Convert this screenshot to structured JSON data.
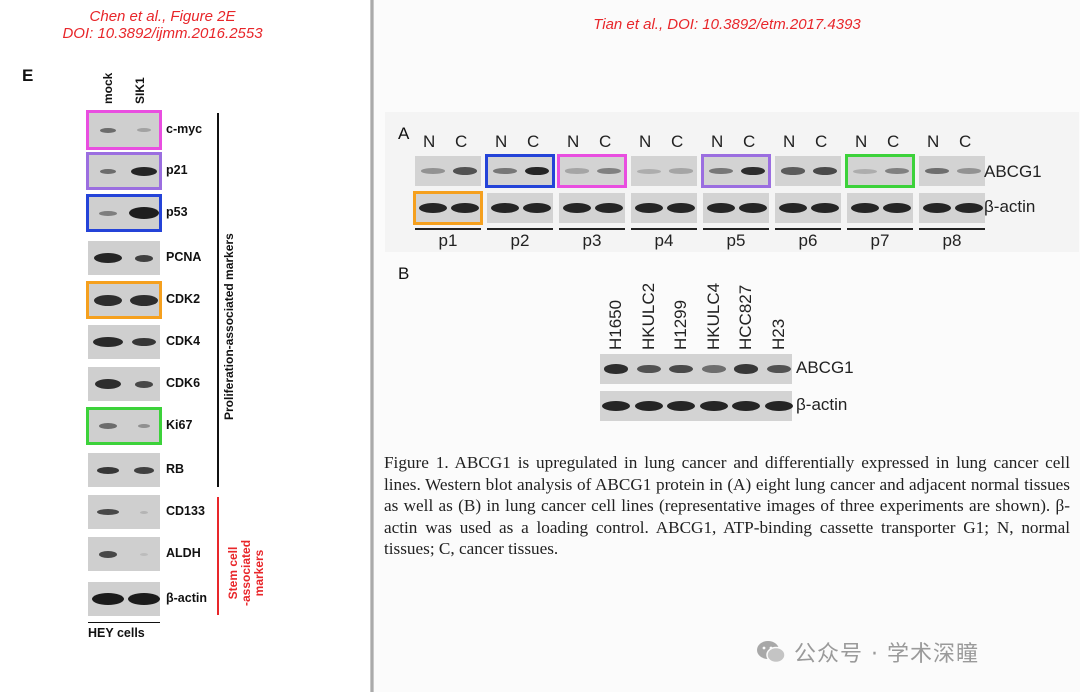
{
  "left": {
    "source_line1": "Chen et al., Figure 2E",
    "source_line2": "DOI: 10.3892/ijmm.2016.2553",
    "panel_letter": "E",
    "col_mock": "mock",
    "col_sik1": "SIK1",
    "rows": [
      "c-myc",
      "p21",
      "p53",
      "PCNA",
      "CDK2",
      "CDK4",
      "CDK6",
      "Ki67",
      "RB",
      "CD133",
      "ALDH",
      "β-actin"
    ],
    "group_proliferation": "Proliferation-associated markers",
    "group_stem_line1": "Stem cell",
    "group_stem_line2": "-associated",
    "group_stem_line3": "markers",
    "footer": "HEY cells"
  },
  "right": {
    "source": "Tian et al., DOI: 10.3892/etm.2017.4393",
    "panel_a": "A",
    "panel_b": "B",
    "n": "N",
    "c": "C",
    "pairs": [
      "p1",
      "p2",
      "p3",
      "p4",
      "p5",
      "p6",
      "p7",
      "p8"
    ],
    "abcg1": "ABCG1",
    "bactin": "β-actin",
    "cell_lines": [
      "H1650",
      "HKULC2",
      "H1299",
      "HKULC4",
      "HCC827",
      "H23"
    ],
    "caption": "Figure 1. ABCG1 is upregulated in lung cancer and differentially expressed in lung cancer cell lines. Western blot analysis of ABCG1 protein in (A) eight lung cancer and adjacent normal tissues as well as (B) in lung cancer cell lines (representative images of three experiments are shown). β-actin was used as a loading control. ABCG1, ATP-binding cassette transporter G1; N, normal tissues; C, cancer tissues."
  },
  "watermark": "公众号 · 学术深瞳",
  "colors": {
    "source_red": "#e8262a",
    "magenta": "#e94ee0",
    "purple": "#9b6ee0",
    "blue": "#2443d8",
    "orange": "#f5a01e",
    "green": "#3cd23a"
  }
}
